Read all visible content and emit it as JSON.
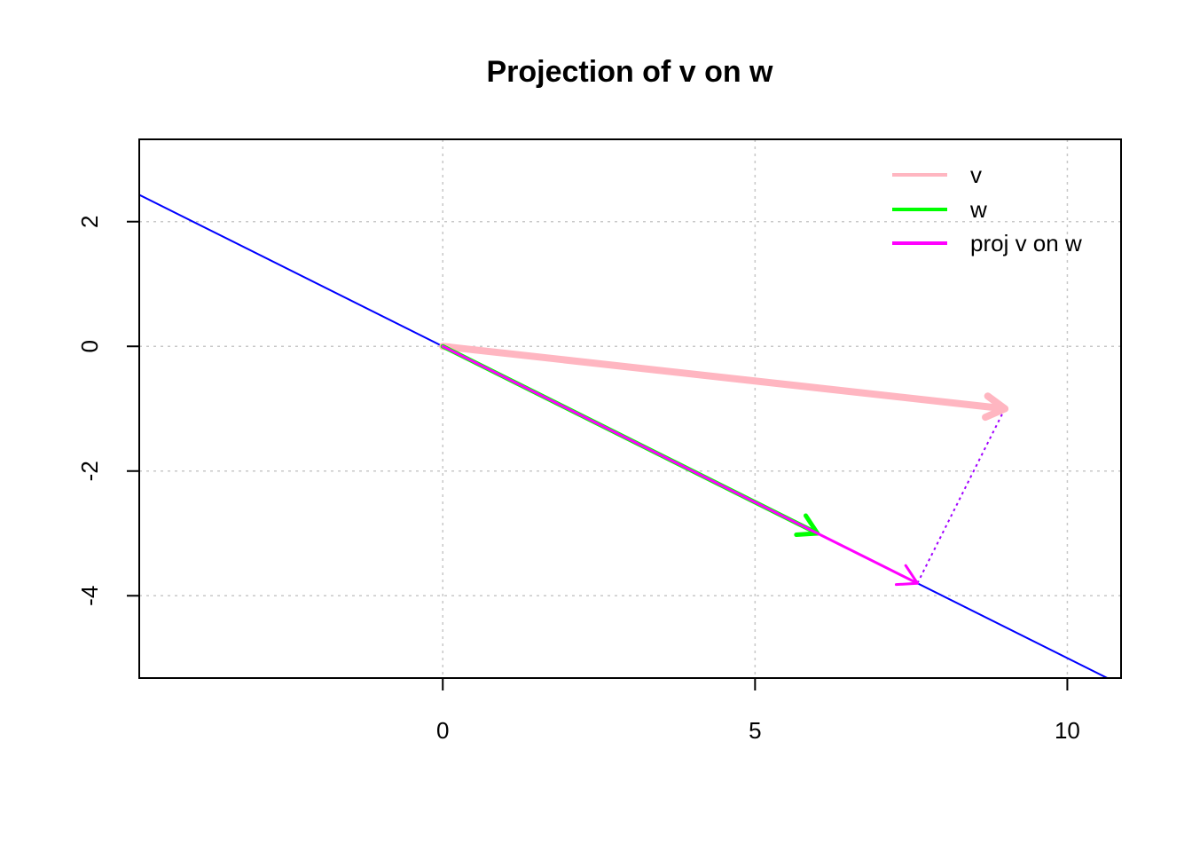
{
  "chart_data": {
    "type": "line",
    "title": "Projection of v on w",
    "xlabel": "",
    "ylabel": "",
    "xlim": [
      -4.86,
      10.86
    ],
    "ylim": [
      -5.32,
      3.32
    ],
    "x_ticks": [
      0,
      5,
      10
    ],
    "y_ticks": [
      -4,
      -2,
      0,
      2
    ],
    "grid": true,
    "legend_position": "top-right",
    "line": {
      "slope": -0.5,
      "intercept": 0,
      "color": "#0000ff"
    },
    "series": [
      {
        "name": "v",
        "from": [
          0,
          0
        ],
        "to": [
          9,
          -1
        ],
        "color": "#ffb6c1",
        "width": 8
      },
      {
        "name": "w",
        "from": [
          0,
          0
        ],
        "to": [
          6,
          -3
        ],
        "color": "#00ff00",
        "width": 5
      },
      {
        "name": "proj v on w",
        "from": [
          0,
          0
        ],
        "to": [
          7.6,
          -3.8
        ],
        "color": "#ff00ff",
        "width": 3
      }
    ],
    "perpendicular": {
      "from": [
        9,
        -1
      ],
      "to": [
        7.6,
        -3.8
      ],
      "color": "#a000ff",
      "style": "dotted"
    }
  }
}
